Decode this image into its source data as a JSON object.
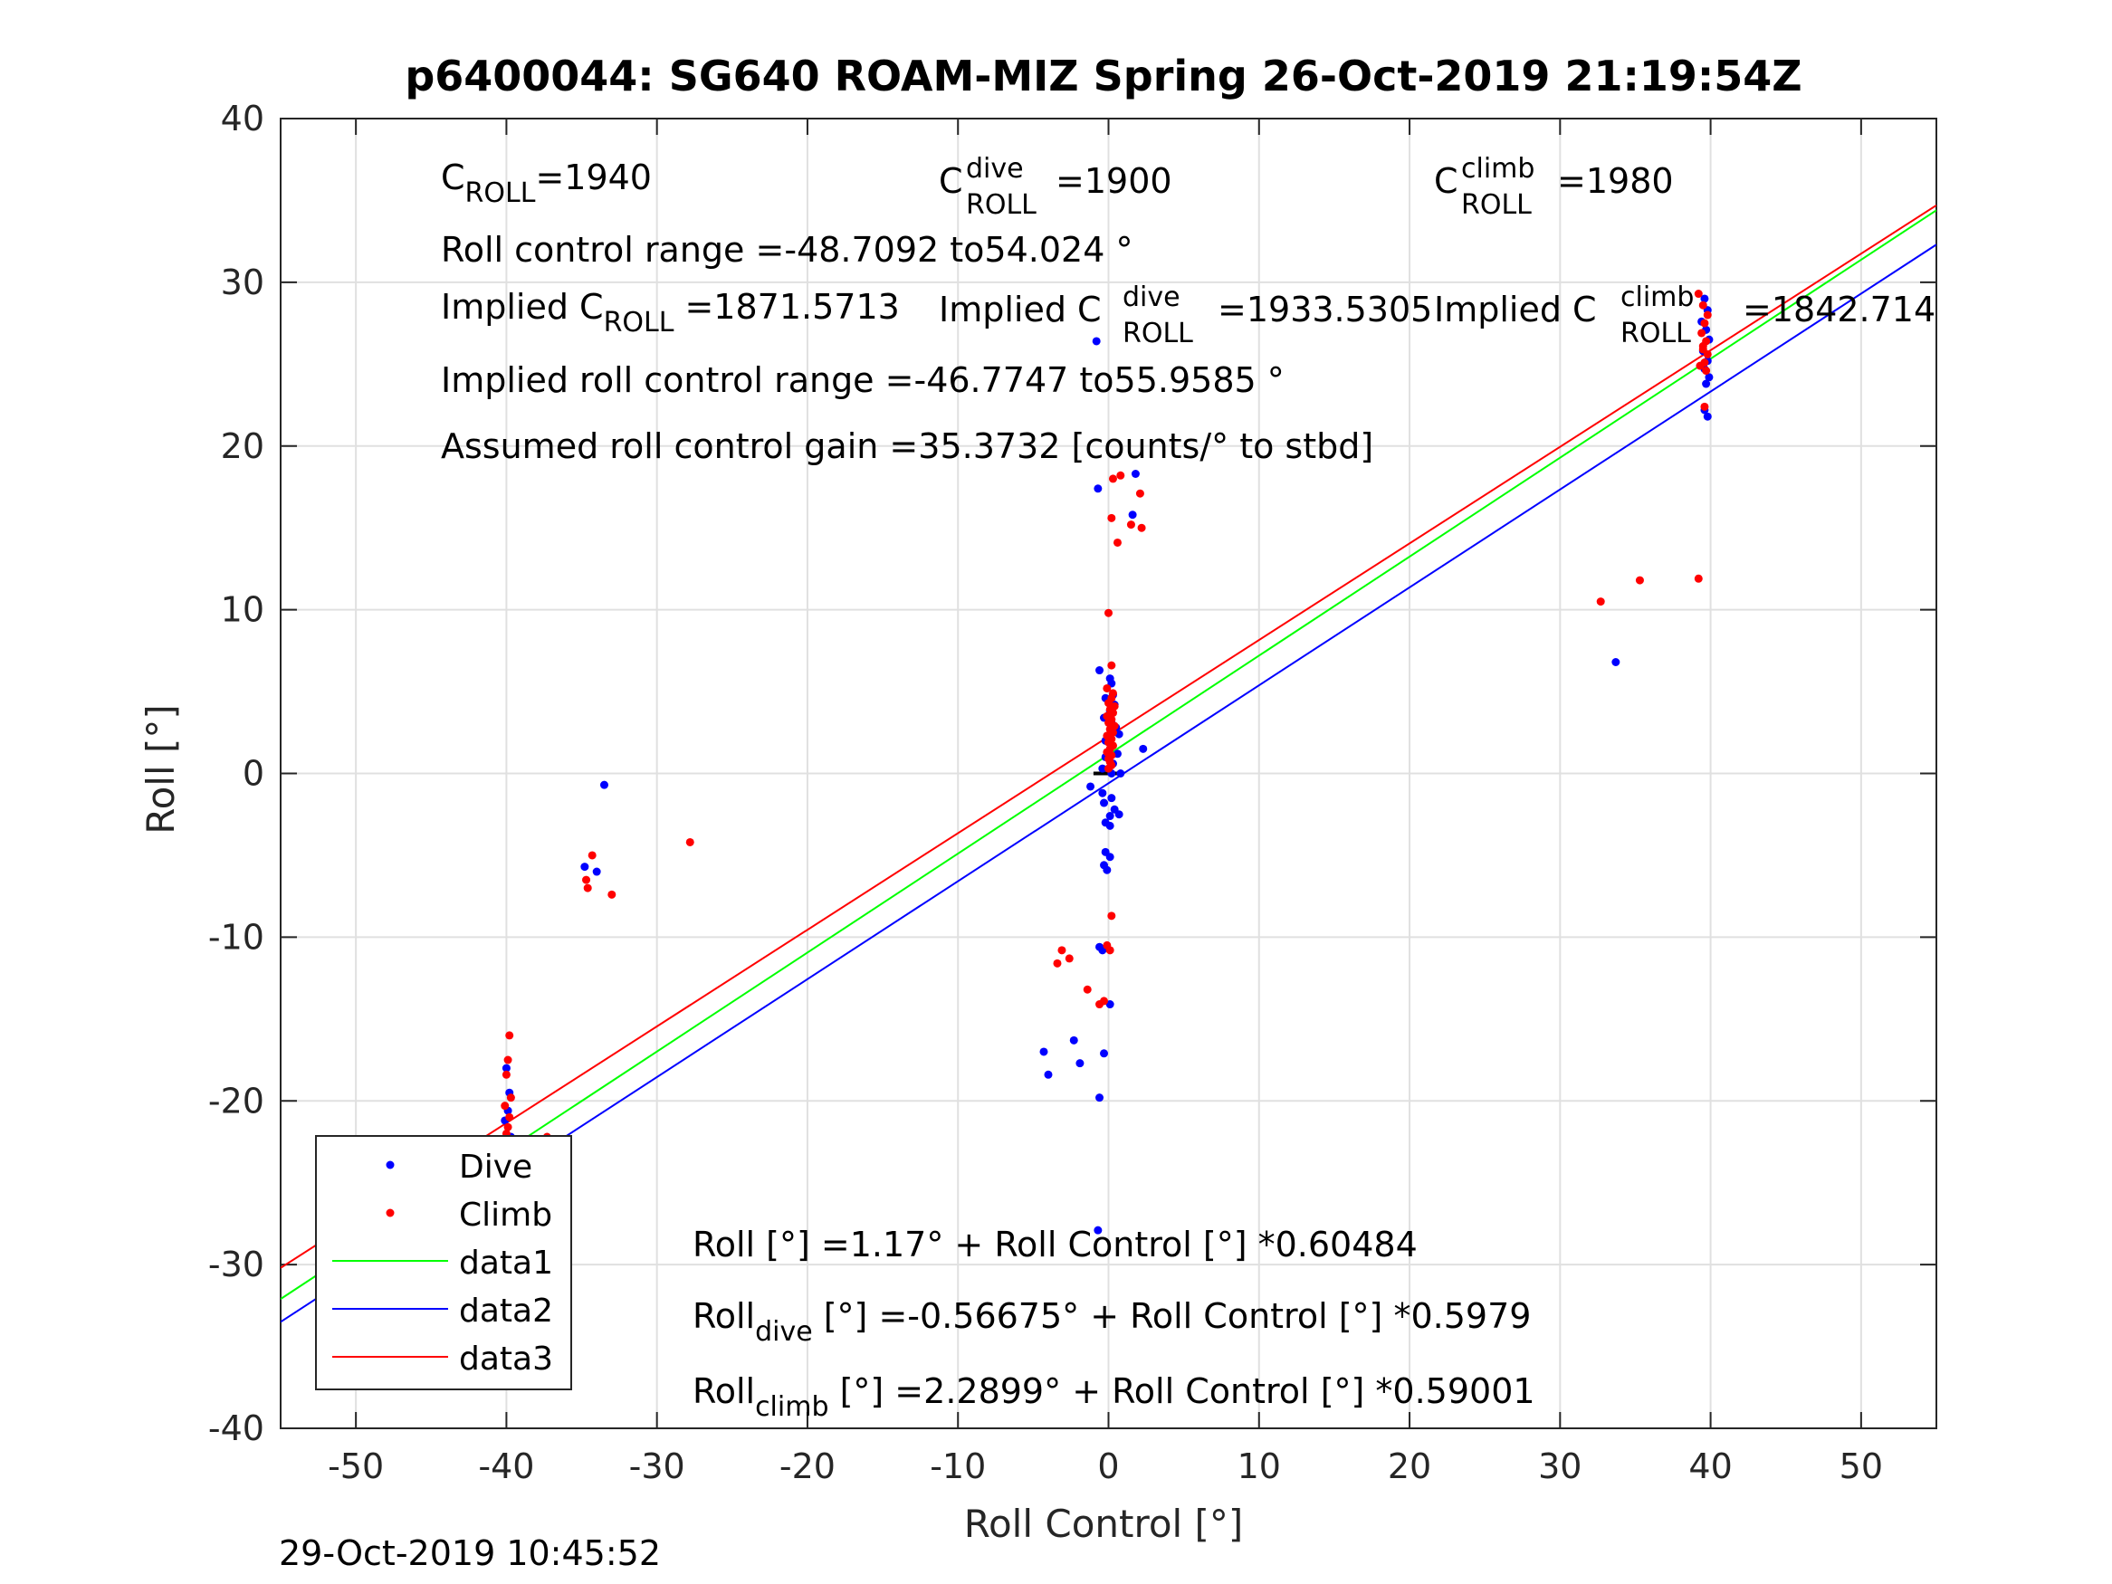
{
  "chart_data": {
    "type": "scatter",
    "title": "p6400044: SG640 ROAM-MIZ Spring 26-Oct-2019 21:19:54Z",
    "xlabel": "Roll Control [°]",
    "ylabel": "Roll [°]",
    "xlim": [
      -55,
      55
    ],
    "ylim": [
      -40,
      40
    ],
    "xticks": [
      -50,
      -40,
      -30,
      -20,
      -10,
      0,
      10,
      20,
      30,
      40,
      50
    ],
    "yticks": [
      -40,
      -30,
      -20,
      -10,
      0,
      10,
      20,
      30,
      40
    ],
    "grid": true,
    "legend_position": "bottom-left",
    "colors": {
      "dive": "#0000ff",
      "climb": "#ff0000",
      "data1": "#00ff00",
      "data2": "#0000ff",
      "data3": "#ff0000",
      "zero_marker": "#000000"
    },
    "series": [
      {
        "name": "Dive",
        "kind": "points",
        "points": [
          [
            -40,
            -18
          ],
          [
            -39.8,
            -19.5
          ],
          [
            -39.9,
            -20.6
          ],
          [
            -40.1,
            -21.2
          ],
          [
            -39.7,
            -22.2
          ],
          [
            -40,
            -23
          ],
          [
            -39.6,
            -23.6
          ],
          [
            -40.2,
            -24
          ],
          [
            -39.8,
            -24.4
          ],
          [
            -40,
            -24.8
          ],
          [
            -39.5,
            -25.1
          ],
          [
            -40.1,
            -25.4
          ],
          [
            -39.9,
            -25.8
          ],
          [
            -40.3,
            -26.1
          ],
          [
            -39.7,
            -26.6
          ],
          [
            -40,
            -27.2
          ],
          [
            -39.6,
            -27.6
          ],
          [
            -40.1,
            -28.1
          ],
          [
            -39.8,
            -28.5
          ],
          [
            -40,
            -28.9
          ],
          [
            -39.9,
            -25
          ],
          [
            -39.7,
            -23.9
          ],
          [
            -40.2,
            -22.8
          ],
          [
            -34.8,
            -5.7
          ],
          [
            -34,
            -6
          ],
          [
            -33.5,
            -0.7
          ],
          [
            -0.8,
            26.4
          ],
          [
            -0.7,
            17.4
          ],
          [
            1.8,
            18.3
          ],
          [
            1.6,
            15.8
          ],
          [
            -0.6,
            6.3
          ],
          [
            0.1,
            5.8
          ],
          [
            0.2,
            5.5
          ],
          [
            0.3,
            4.8
          ],
          [
            -0.2,
            4.6
          ],
          [
            0.4,
            4.2
          ],
          [
            0.1,
            3.8
          ],
          [
            -0.3,
            3.4
          ],
          [
            0.2,
            3.1
          ],
          [
            0.5,
            2.8
          ],
          [
            0.1,
            2.3
          ],
          [
            -0.2,
            2
          ],
          [
            0.7,
            2.4
          ],
          [
            2.3,
            1.5
          ],
          [
            0.6,
            1.2
          ],
          [
            -0.2,
            1
          ],
          [
            0.3,
            0.6
          ],
          [
            -0.4,
            0.3
          ],
          [
            0.2,
            0
          ],
          [
            0.8,
            0
          ],
          [
            -1.2,
            -0.8
          ],
          [
            -0.4,
            -1.2
          ],
          [
            0.2,
            -1.5
          ],
          [
            -0.3,
            -1.8
          ],
          [
            0.4,
            -2.2
          ],
          [
            0.1,
            -2.6
          ],
          [
            0.7,
            -2.5
          ],
          [
            -0.2,
            -3
          ],
          [
            0.1,
            -3.2
          ],
          [
            -0.2,
            -4.8
          ],
          [
            0.1,
            -5.1
          ],
          [
            -0.3,
            -5.6
          ],
          [
            -0.1,
            -5.9
          ],
          [
            -0.6,
            -10.6
          ],
          [
            -0.4,
            -10.8
          ],
          [
            0.1,
            -14.1
          ],
          [
            -4.3,
            -17
          ],
          [
            -4,
            -18.4
          ],
          [
            -2.3,
            -16.3
          ],
          [
            -1.9,
            -17.7
          ],
          [
            -0.3,
            -17.1
          ],
          [
            -0.6,
            -19.8
          ],
          [
            -0.7,
            -27.9
          ],
          [
            33.7,
            6.8
          ],
          [
            39.6,
            29
          ],
          [
            39.8,
            28.3
          ],
          [
            39.4,
            27.6
          ],
          [
            39.7,
            27.1
          ],
          [
            39.9,
            26.5
          ],
          [
            39.5,
            25.8
          ],
          [
            39.8,
            25.2
          ],
          [
            39.6,
            24.7
          ],
          [
            39.9,
            24.2
          ],
          [
            39.7,
            23.8
          ],
          [
            39.6,
            22.2
          ],
          [
            39.8,
            21.8
          ],
          [
            -47.6,
            -24.1
          ]
        ]
      },
      {
        "name": "Climb",
        "kind": "points",
        "points": [
          [
            -39.8,
            -16
          ],
          [
            -39.9,
            -17.5
          ],
          [
            -40,
            -18.4
          ],
          [
            -39.7,
            -19.8
          ],
          [
            -40.1,
            -20.3
          ],
          [
            -39.8,
            -21
          ],
          [
            -39.9,
            -21.6
          ],
          [
            -40,
            -22
          ],
          [
            -39.7,
            -22.4
          ],
          [
            -40.2,
            -22.8
          ],
          [
            -39.9,
            -23.3
          ],
          [
            -39.6,
            -23.8
          ],
          [
            -40,
            -24.3
          ],
          [
            -39.8,
            -24.9
          ],
          [
            -39.9,
            -25.4
          ],
          [
            -37.3,
            -22.2
          ],
          [
            -34.3,
            -5
          ],
          [
            -34.7,
            -6.5
          ],
          [
            -34.6,
            -7
          ],
          [
            -33,
            -7.4
          ],
          [
            -27.8,
            -4.2
          ],
          [
            0.3,
            18
          ],
          [
            0.8,
            18.2
          ],
          [
            2.1,
            17.1
          ],
          [
            0.2,
            15.6
          ],
          [
            1.5,
            15.2
          ],
          [
            2.2,
            15
          ],
          [
            0.6,
            14.1
          ],
          [
            0,
            9.8
          ],
          [
            0.2,
            6.6
          ],
          [
            -0.1,
            5.2
          ],
          [
            0.3,
            4.9
          ],
          [
            0.2,
            4.6
          ],
          [
            0,
            4.3
          ],
          [
            0.4,
            4.1
          ],
          [
            0.1,
            3.9
          ],
          [
            0.3,
            3.7
          ],
          [
            -0.1,
            3.5
          ],
          [
            0.2,
            3.3
          ],
          [
            0,
            3.1
          ],
          [
            0.4,
            2.9
          ],
          [
            0.1,
            2.7
          ],
          [
            0.3,
            2.5
          ],
          [
            -0.1,
            2.3
          ],
          [
            0.2,
            2.1
          ],
          [
            0,
            1.9
          ],
          [
            0.3,
            1.7
          ],
          [
            0.1,
            1.5
          ],
          [
            -0.1,
            1.3
          ],
          [
            0.2,
            1.1
          ],
          [
            0,
            0.9
          ],
          [
            0.1,
            0.7
          ],
          [
            0.2,
            0.5
          ],
          [
            0,
            0.3
          ],
          [
            0.2,
            -8.7
          ],
          [
            -0.1,
            -10.5
          ],
          [
            0.1,
            -10.8
          ],
          [
            -3.1,
            -10.8
          ],
          [
            -3.4,
            -11.6
          ],
          [
            -2.6,
            -11.3
          ],
          [
            -1.4,
            -13.2
          ],
          [
            -0.6,
            -14.1
          ],
          [
            -0.3,
            -13.9
          ],
          [
            32.7,
            10.5
          ],
          [
            35.3,
            11.8
          ],
          [
            39.2,
            11.9
          ],
          [
            39.2,
            29.3
          ],
          [
            39.5,
            28.6
          ],
          [
            39.8,
            28
          ],
          [
            39.6,
            27.5
          ],
          [
            39.4,
            26.9
          ],
          [
            39.7,
            26.4
          ],
          [
            39.5,
            25.9
          ],
          [
            39.8,
            25.6
          ],
          [
            39.6,
            25.1
          ],
          [
            39.3,
            24.9
          ],
          [
            39.7,
            24.6
          ],
          [
            39.5,
            26.1
          ],
          [
            39.6,
            22.4
          ],
          [
            -47.6,
            -27
          ]
        ]
      },
      {
        "name": "data1",
        "kind": "line",
        "x": [
          -55,
          55
        ],
        "y": [
          -32.1,
          34.4
        ]
      },
      {
        "name": "data2",
        "kind": "line",
        "x": [
          -55,
          55
        ],
        "y": [
          -33.5,
          32.3
        ]
      },
      {
        "name": "data3",
        "kind": "line",
        "x": [
          -55,
          55
        ],
        "y": [
          -30.2,
          34.7
        ]
      }
    ],
    "zero_marker": {
      "x": [
        -1,
        1
      ],
      "y": 0
    },
    "annotations": {
      "c_roll": {
        "base": "C",
        "sub": "ROLL",
        "value": "=1940"
      },
      "c_roll_dive": {
        "base": "C",
        "sup": "dive",
        "sub": "ROLL",
        "value": "=1900"
      },
      "c_roll_climb": {
        "base": "C",
        "sup": "climb",
        "sub": "ROLL",
        "value": "=1980"
      },
      "range": "Roll control range =-48.7092 to54.024 °",
      "implied_c_roll": {
        "prefix": "Implied C",
        "sub": "ROLL",
        "value": "=1871.5713"
      },
      "implied_c_roll_dive": {
        "prefix": "Implied C",
        "sup": "dive",
        "sub": "ROLL",
        "value": "=1933.5305"
      },
      "implied_c_roll_climb": {
        "prefix": "Implied C",
        "sup": "climb",
        "sub": "ROLL",
        "value": "=1842.714"
      },
      "implied_range": "Implied roll control range =-46.7747 to55.9585 °",
      "gain": "Assumed roll control gain =35.3732 [counts/° to stbd]",
      "fit_all": "Roll [°] =1.17° + Roll Control [°] *0.60484",
      "fit_dive": {
        "base": "Roll",
        "sub": "dive",
        "value": " [°] =-0.56675° + Roll Control [°] *0.5979"
      },
      "fit_climb": {
        "base": "Roll",
        "sub": "climb",
        "value": " [°] =2.2899° + Roll Control [°] *0.59001"
      }
    }
  },
  "footer_timestamp": "29-Oct-2019 10:45:52"
}
